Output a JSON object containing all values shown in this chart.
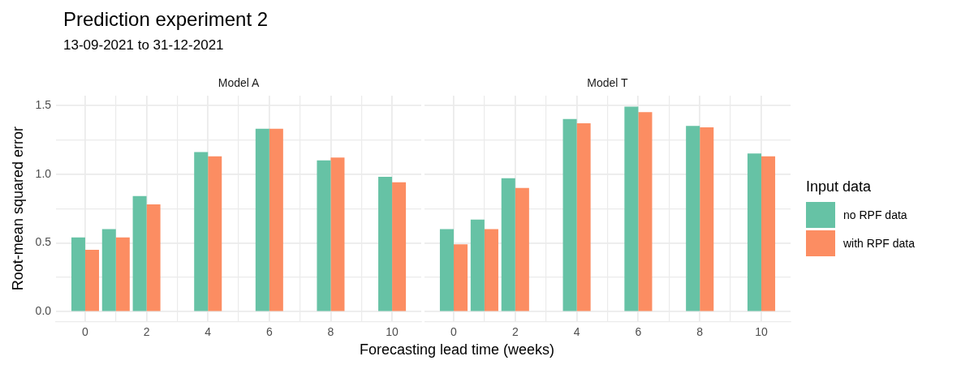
{
  "chart_data": [
    {
      "type": "bar",
      "title": "Prediction experiment 2",
      "subtitle": "13-09-2021 to 31-12-2021",
      "annotations": [
        "Model A"
      ],
      "xlabel": "Forecasting lead time (weeks)",
      "ylabel": "Root-mean squared error",
      "legend": "right",
      "legend_title": "Input data",
      "x": [
        0,
        1,
        2,
        4,
        6,
        8,
        10
      ],
      "series": [
        {
          "name": "no RPF data",
          "color": "#66c2a5",
          "values": [
            0.54,
            0.6,
            0.84,
            1.16,
            1.33,
            1.1,
            0.98
          ]
        },
        {
          "name": "with RPF data",
          "color": "#fc8d62",
          "values": [
            0.45,
            0.54,
            0.78,
            1.13,
            1.33,
            1.12,
            0.94
          ]
        }
      ],
      "xlim": [
        -0.95,
        10.95
      ],
      "xticks": [
        0,
        {
          "value": 1,
          "label": null
        },
        2,
        {
          "value": 3,
          "label": null
        },
        4,
        {
          "value": 5,
          "label": null
        },
        6,
        {
          "value": 7,
          "label": null
        },
        8,
        {
          "value": 9,
          "label": null
        },
        10
      ],
      "ylim": [
        -0.07,
        1.57
      ],
      "yticks": [
        {
          "value": 0,
          "label": "0.0"
        },
        {
          "value": 0.25,
          "label": null
        },
        0.5,
        {
          "value": 0.75,
          "label": null
        },
        {
          "value": 1,
          "label": "1.0"
        },
        {
          "value": 1.25,
          "label": null
        },
        1.5
      ],
      "grid": true
    },
    {
      "type": "bar",
      "annotations": [
        "Model T"
      ],
      "x": [
        0,
        1,
        2,
        4,
        6,
        8,
        10
      ],
      "series": [
        {
          "color": "#66c2a5",
          "values": [
            0.6,
            0.67,
            0.97,
            1.4,
            1.49,
            1.35,
            1.15
          ]
        },
        {
          "color": "#fc8d62",
          "values": [
            0.49,
            0.6,
            0.9,
            1.37,
            1.45,
            1.34,
            1.13
          ]
        }
      ],
      "xlim": [
        -0.95,
        10.95
      ],
      "xticks": [
        0,
        {
          "value": 1,
          "label": null
        },
        2,
        {
          "value": 3,
          "label": null
        },
        4,
        {
          "value": 5,
          "label": null
        },
        6,
        {
          "value": 7,
          "label": null
        },
        8,
        {
          "value": 9,
          "label": null
        },
        10
      ],
      "ylim": [
        -0.07,
        1.57
      ],
      "yticks": [
        0,
        {
          "value": 0.25,
          "label": null
        },
        0.5,
        {
          "value": 0.75,
          "label": null
        },
        1,
        {
          "value": 1.25,
          "label": null
        },
        1.5
      ],
      "grid": true,
      "tick_labels": "x"
    }
  ]
}
